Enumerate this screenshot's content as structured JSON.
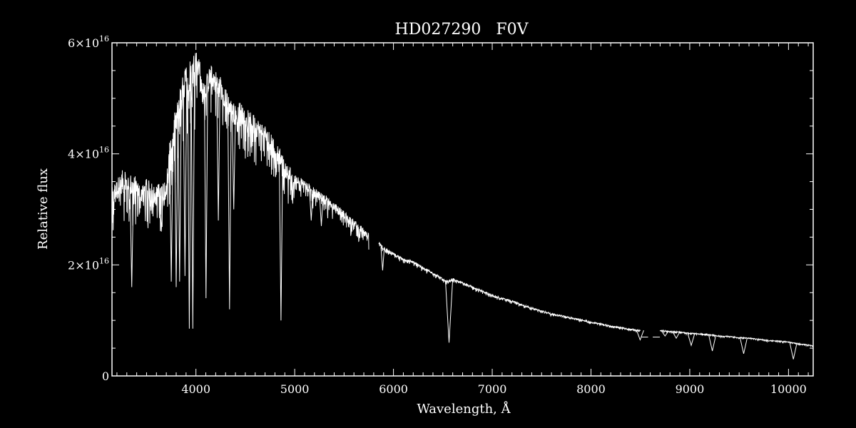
{
  "chart_data": {
    "type": "line",
    "title": "HD027290   F0V",
    "xlabel": "Wavelength, Å",
    "ylabel": "Relative flux",
    "xlim": [
      3150,
      10250
    ],
    "ylim": [
      0,
      6e+16
    ],
    "x_ticks": [
      {
        "value": 4000,
        "label": "4000"
      },
      {
        "value": 5000,
        "label": "5000"
      },
      {
        "value": 6000,
        "label": "6000"
      },
      {
        "value": 7000,
        "label": "7000"
      },
      {
        "value": 8000,
        "label": "8000"
      },
      {
        "value": 9000,
        "label": "9000"
      },
      {
        "value": 10000,
        "label": "10000"
      }
    ],
    "y_ticks": [
      {
        "value": 0,
        "mantissa": "0",
        "exponent": ""
      },
      {
        "value": 2e+16,
        "mantissa": "2×10",
        "exponent": "16"
      },
      {
        "value": 4e+16,
        "mantissa": "4×10",
        "exponent": "16"
      },
      {
        "value": 6e+16,
        "mantissa": "6×10",
        "exponent": "16"
      }
    ],
    "colors": {
      "background": "#000000",
      "foreground": "#ffffff"
    },
    "series": [
      {
        "segments": [
          {
            "x": [
              3150,
              3200,
              3250,
              3300,
              3350,
              3400,
              3450,
              3500,
              3550,
              3600,
              3650,
              3700,
              3750,
              3800,
              3850,
              3900,
              3950,
              4000,
              4030,
              4050,
              4100,
              4150,
              4200,
              4250,
              4300,
              4350,
              4400,
              4450,
              4500,
              4600,
              4700,
              4800,
              4850,
              4900,
              5000,
              5100,
              5200,
              5300,
              5400,
              5500,
              5600,
              5700,
              5750
            ],
            "y": [
              3.2e+16,
              3.35e+16,
              3.5e+16,
              3.45e+16,
              3.4e+16,
              3.4e+16,
              3.3e+16,
              3.35e+16,
              3.3e+16,
              3.25e+16,
              3.3e+16,
              3.4e+16,
              4.2e+16,
              4.6e+16,
              5e+16,
              5.3e+16,
              5.4e+16,
              5.6e+16,
              5.8e+16,
              5.2e+16,
              5.2e+16,
              5.4e+16,
              5.3e+16,
              5.2e+16,
              5e+16,
              4.8e+16,
              4.7e+16,
              4.75e+16,
              4.65e+16,
              4.5e+16,
              4.35e+16,
              4.1e+16,
              3.95e+16,
              3.7e+16,
              3.55e+16,
              3.45e+16,
              3.3e+16,
              3.2e+16,
              3.05e+16,
              2.9e+16,
              2.75e+16,
              2.6e+16,
              2.5e+16
            ]
          },
          {
            "x": [
              5850,
              5900,
              6000,
              6100,
              6200,
              6300,
              6400,
              6500,
              6550,
              6600,
              6700,
              6800,
              7000,
              7200,
              7400,
              7600,
              7800,
              8000,
              8200,
              8400,
              8500
            ],
            "y": [
              2.4e+16,
              2.3e+16,
              2.2e+16,
              2.1e+16,
              2.05e+16,
              1.95e+16,
              1.85e+16,
              1.75e+16,
              1.7e+16,
              1.75e+16,
              1.68e+16,
              1.6e+16,
              1.45e+16,
              1.35e+16,
              1.22e+16,
              1.12e+16,
              1.05e+16,
              9700000000000000.0,
              9000000000000000.0,
              8400000000000000.0,
              8200000000000000.0
            ]
          },
          {
            "x": [
              8700,
              8800,
              8900,
              9000,
              9100,
              9200,
              9300,
              9400,
              9500,
              9600,
              9700,
              9800,
              9900,
              10000,
              10100,
              10200,
              10250
            ],
            "y": [
              8200000000000000.0,
              8000000000000000.0,
              7900000000000000.0,
              7700000000000000.0,
              7600000000000000.0,
              7400000000000000.0,
              7200000000000000.0,
              7100000000000000.0,
              6900000000000000.0,
              6800000000000000.0,
              6600000000000000.0,
              6400000000000000.0,
              6300000000000000.0,
              6100000000000000.0,
              5800000000000000.0,
              5600000000000000.0,
              5400000000000000.0
            ]
          }
        ],
        "absorption_lines": [
          {
            "x": 3350,
            "y": 1.6e+16
          },
          {
            "x": 3650,
            "y": 2.6e+16
          },
          {
            "x": 3750,
            "y": 1.7e+16
          },
          {
            "x": 3800,
            "y": 1.6e+16
          },
          {
            "x": 3835,
            "y": 1.7e+16
          },
          {
            "x": 3889,
            "y": 1.8e+16
          },
          {
            "x": 3933,
            "y": 8500000000000000.0
          },
          {
            "x": 3968,
            "y": 8500000000000000.0
          },
          {
            "x": 4102,
            "y": 1.4e+16
          },
          {
            "x": 4227,
            "y": 2.8e+16
          },
          {
            "x": 4340,
            "y": 1.2e+16
          },
          {
            "x": 4383,
            "y": 3e+16
          },
          {
            "x": 4861,
            "y": 1e+16
          },
          {
            "x": 5167,
            "y": 2.8e+16
          },
          {
            "x": 5270,
            "y": 2.7e+16
          },
          {
            "x": 5890,
            "y": 1.9e+16
          },
          {
            "x": 6563,
            "y": 6000000000000000.0
          },
          {
            "x": 8498,
            "y": 6500000000000000.0
          },
          {
            "x": 8542,
            "y": 7000000000000000.0
          },
          {
            "x": 8662,
            "y": 7000000000000000.0
          },
          {
            "x": 8750,
            "y": 7200000000000000.0
          },
          {
            "x": 8863,
            "y": 6800000000000000.0
          },
          {
            "x": 9015,
            "y": 5500000000000000.0
          },
          {
            "x": 9229,
            "y": 4500000000000000.0
          },
          {
            "x": 9546,
            "y": 4000000000000000.0
          },
          {
            "x": 10049,
            "y": 3000000000000000.0
          }
        ]
      }
    ]
  }
}
